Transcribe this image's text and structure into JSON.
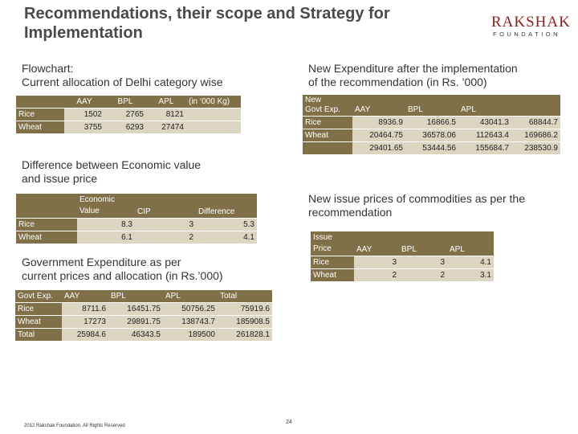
{
  "title": "Recommendations, their scope and Strategy for Implementation",
  "logo": {
    "main": "RAKSHAK",
    "sub": "FOUNDATION"
  },
  "flowchart_heading": [
    "Flowchart:",
    "Current allocation of Delhi category wise"
  ],
  "current_allocation": {
    "headers": [
      "",
      "AAY",
      "BPL",
      "APL",
      "(in ‘000 Kg)"
    ],
    "rows": [
      {
        "label": "Rice",
        "values": [
          "1502",
          "2765",
          "8121",
          ""
        ]
      },
      {
        "label": "Wheat",
        "values": [
          "3755",
          "6293",
          "27474",
          ""
        ]
      }
    ]
  },
  "new_expenditure_heading": [
    "New Expenditure after the implementation",
    "of the recommendation (in Rs. ’000)"
  ],
  "new_expenditure": {
    "header_label": [
      "New",
      "Govt Exp."
    ],
    "headers": [
      "AAY",
      "BPL",
      "APL",
      ""
    ],
    "rows": [
      {
        "label": "Rice",
        "values": [
          "8936.9",
          "16866.5",
          "43041.3",
          "68844.7"
        ]
      },
      {
        "label": "Wheat",
        "values": [
          "20464.75",
          "36578.06",
          "112643.4",
          "169686.2"
        ]
      },
      {
        "label": "",
        "values": [
          "29401.65",
          "53444.56",
          "155684.7",
          "238530.9"
        ]
      }
    ]
  },
  "difference_heading": [
    "Difference between Economic value",
    "and issue price"
  ],
  "difference": {
    "headers": [
      "",
      "Economic Value",
      "CIP",
      "Difference"
    ],
    "rows": [
      {
        "label": "Rice",
        "values": [
          "8.3",
          "3",
          "5.3"
        ]
      },
      {
        "label": "Wheat",
        "values": [
          "6.1",
          "2",
          "4.1"
        ]
      }
    ]
  },
  "new_issue_heading": [
    "New issue prices of commodities as per the",
    "recommendation"
  ],
  "new_issue": {
    "header_label": [
      "Issue",
      "Price"
    ],
    "headers": [
      "AAY",
      "BPL",
      "APL"
    ],
    "rows": [
      {
        "label": "Rice",
        "values": [
          "3",
          "3",
          "4.1"
        ]
      },
      {
        "label": "Wheat",
        "values": [
          "2",
          "2",
          "3.1"
        ]
      }
    ]
  },
  "govt_exp_heading": [
    "Government Expenditure as per",
    "current prices and allocation (in Rs.’000)"
  ],
  "govt_exp": {
    "headers": [
      "Govt Exp.",
      "AAY",
      "BPL",
      "APL",
      "Total"
    ],
    "rows": [
      {
        "label": "Rice",
        "values": [
          "8711.6",
          "16451.75",
          "50756.25",
          "75919.6"
        ]
      },
      {
        "label": "Wheat",
        "values": [
          "17273",
          "29891.75",
          "138743.7",
          "185908.5"
        ]
      },
      {
        "label": "Total",
        "values": [
          "25984.6",
          "46343.5",
          "189500",
          "261828.1"
        ]
      }
    ]
  },
  "footer": "2012 Rakshak Foundation. All Rights Reserved",
  "page_number": "24"
}
